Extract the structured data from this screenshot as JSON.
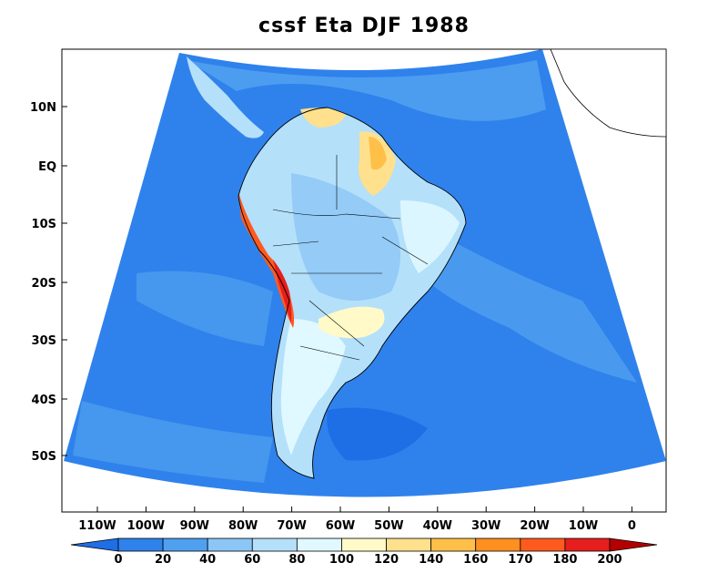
{
  "title": "cssf Eta DJF 1988",
  "lat_labels": [
    "10N",
    "EQ",
    "10S",
    "20S",
    "30S",
    "40S",
    "50S"
  ],
  "lon_labels": [
    "110W",
    "100W",
    "90W",
    "80W",
    "70W",
    "60W",
    "50W",
    "40W",
    "30W",
    "20W",
    "10W",
    "0"
  ],
  "colorbar": {
    "labels": [
      "0",
      "20",
      "40",
      "60",
      "80",
      "100",
      "120",
      "140",
      "160",
      "170",
      "180",
      "200"
    ],
    "colors": [
      "#1e6ee6",
      "#2f82ec",
      "#50a0f0",
      "#8cc6f6",
      "#b4e0fa",
      "#e0f8ff",
      "#fffac8",
      "#ffe08c",
      "#ffc04a",
      "#ff9020",
      "#ff5a1e",
      "#e61e1e",
      "#b40000"
    ]
  }
}
